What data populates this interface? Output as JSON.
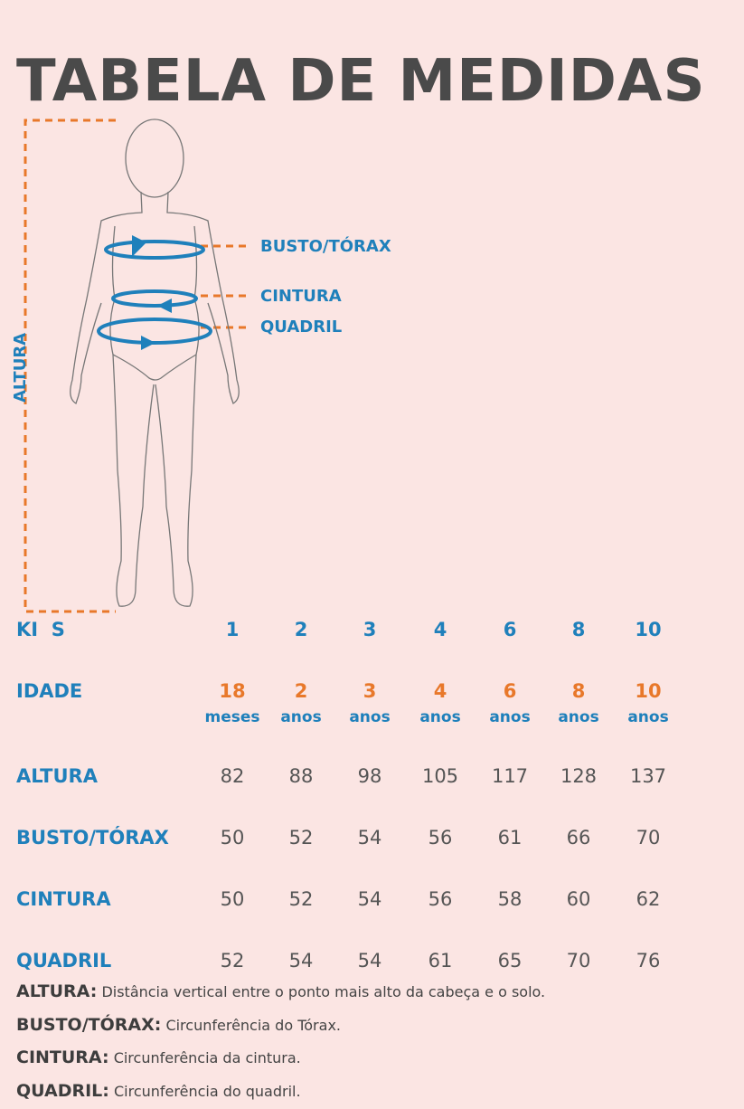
{
  "header": {
    "title": "TABELA DE MEDIDAS"
  },
  "figure": {
    "height_label": "ALTURA",
    "labels": [
      "BUSTO/TÓRAX",
      "CINTURA",
      "QUADRIL"
    ]
  },
  "table": {
    "size_header": "KI  S",
    "sizes": [
      1,
      2,
      3,
      4,
      6,
      8,
      10
    ],
    "age_header": "IDADE",
    "ages": [
      {
        "value": 18,
        "unit": "meses"
      },
      {
        "value": 2,
        "unit": "anos"
      },
      {
        "value": 3,
        "unit": "anos"
      },
      {
        "value": 4,
        "unit": "anos"
      },
      {
        "value": 6,
        "unit": "anos"
      },
      {
        "value": 8,
        "unit": "anos"
      },
      {
        "value": 10,
        "unit": "anos"
      }
    ],
    "rows": [
      {
        "label": "ALTURA",
        "values": [
          82,
          88,
          98,
          105,
          117,
          128,
          137
        ]
      },
      {
        "label": "BUSTO/TÓRAX",
        "values": [
          50,
          52,
          54,
          56,
          61,
          66,
          70
        ]
      },
      {
        "label": "CINTURA",
        "values": [
          50,
          52,
          54,
          56,
          58,
          60,
          62
        ]
      },
      {
        "label": "QUADRIL",
        "values": [
          52,
          54,
          54,
          61,
          65,
          70,
          76
        ]
      }
    ]
  },
  "notes": [
    {
      "term": "ALTURA:",
      "text": "Distância vertical entre o ponto mais alto da cabeça e o solo."
    },
    {
      "term": "BUSTO/TÓRAX:",
      "text": "Circunferência do Tórax."
    },
    {
      "term": "CINTURA:",
      "text": "Circunferência da cintura."
    },
    {
      "term": "QUADRIL:",
      "text": "Circunferência do quadril."
    }
  ]
}
